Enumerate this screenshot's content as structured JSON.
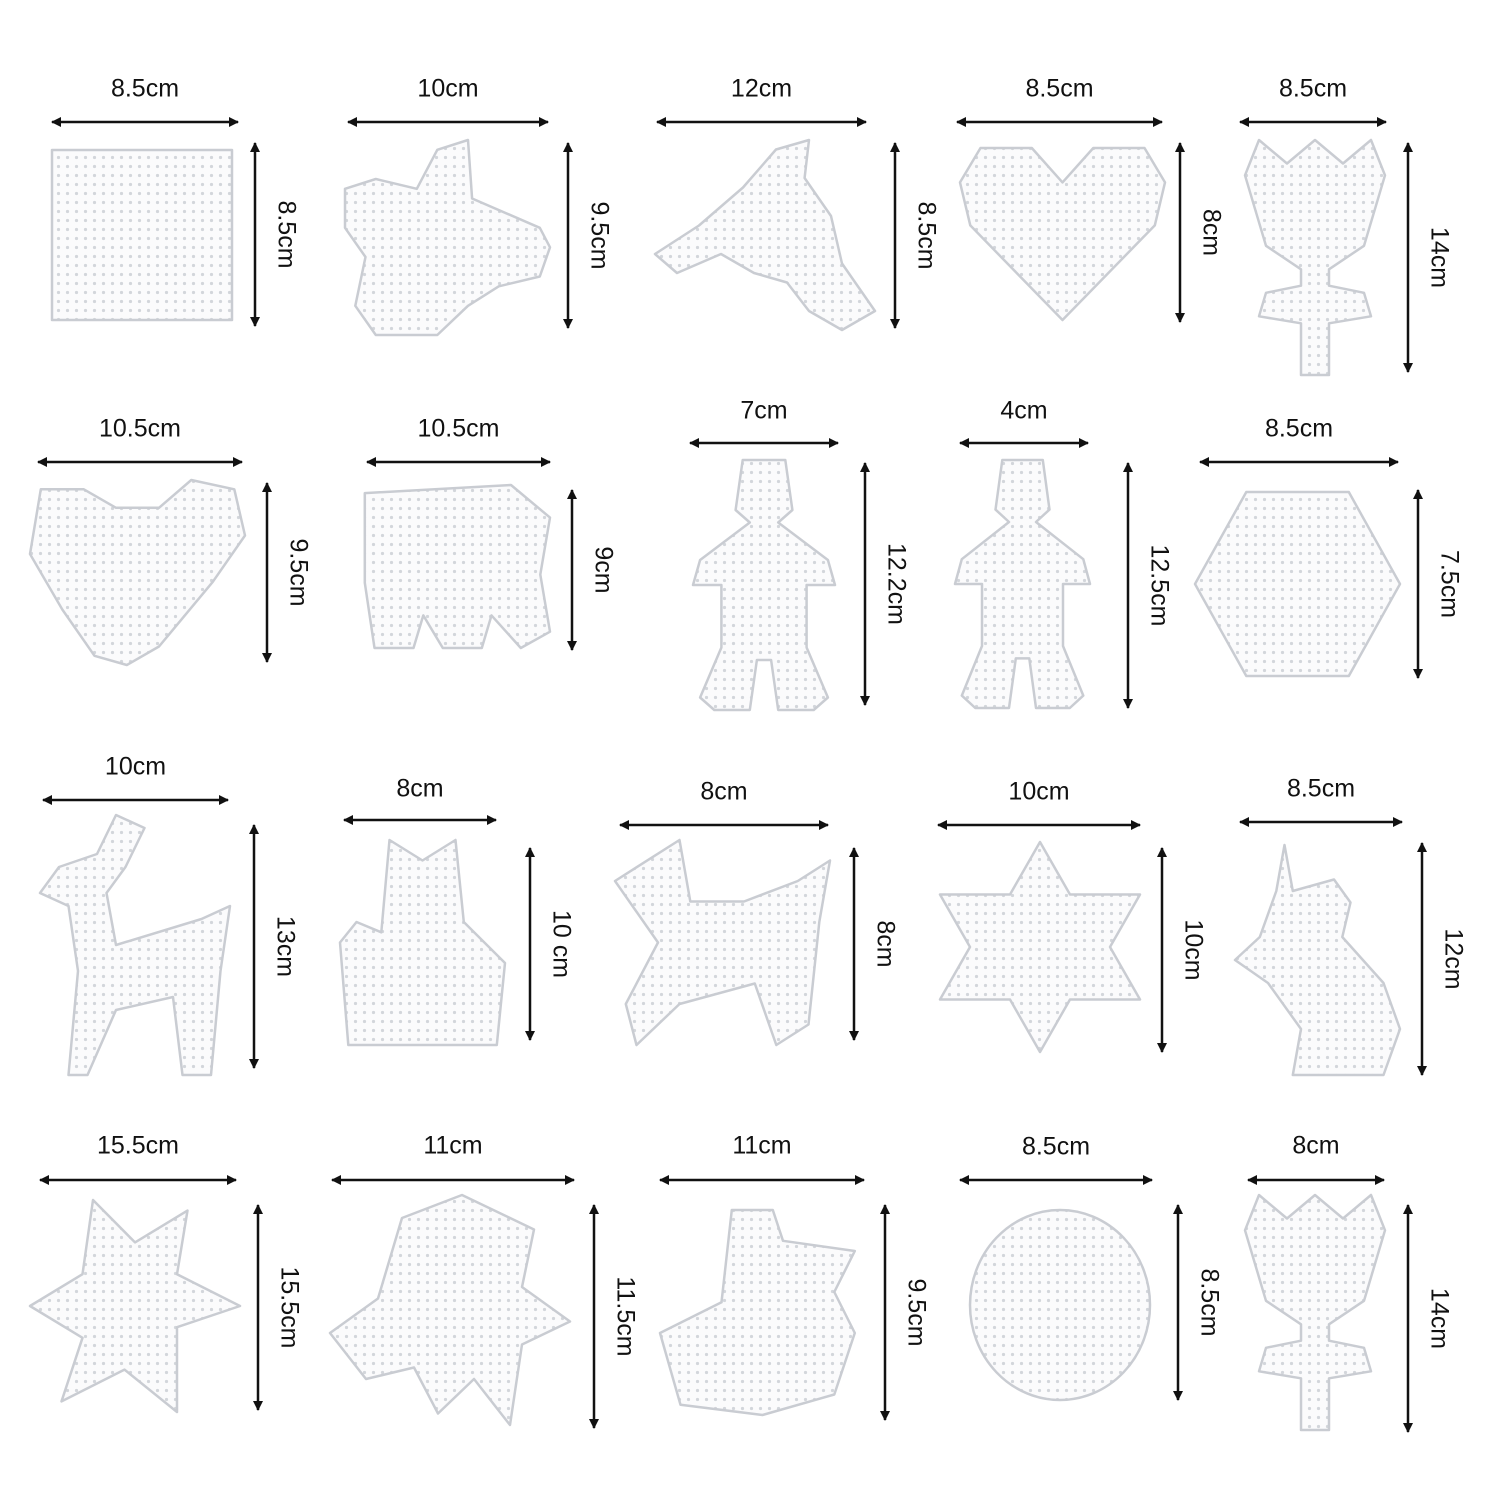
{
  "items": [
    {
      "width": "8.5cm",
      "height": "8.5cm"
    },
    {
      "width": "10cm",
      "height": "9.5cm"
    },
    {
      "width": "12cm",
      "height": "8.5cm"
    },
    {
      "width": "8.5cm",
      "height": "8cm"
    },
    {
      "width": "8.5cm",
      "height": "14cm"
    },
    {
      "width": "10.5cm",
      "height": "9.5cm"
    },
    {
      "width": "10.5cm",
      "height": "9cm"
    },
    {
      "width": "7cm",
      "height": "12.2cm"
    },
    {
      "width": "4cm",
      "height": "12.5cm"
    },
    {
      "width": "8.5cm",
      "height": "7.5cm"
    },
    {
      "width": "10cm",
      "height": "13cm"
    },
    {
      "width": "8cm",
      "height": "10 cm"
    },
    {
      "width": "8cm",
      "height": "8cm"
    },
    {
      "width": "10cm",
      "height": "10cm"
    },
    {
      "width": "8.5cm",
      "height": "12cm"
    },
    {
      "width": "15.5cm",
      "height": "15.5cm"
    },
    {
      "width": "11cm",
      "height": "11.5cm"
    },
    {
      "width": "11cm",
      "height": "9.5cm"
    },
    {
      "width": "8.5cm",
      "height": "8.5cm"
    },
    {
      "width": "8cm",
      "height": "14cm"
    }
  ]
}
